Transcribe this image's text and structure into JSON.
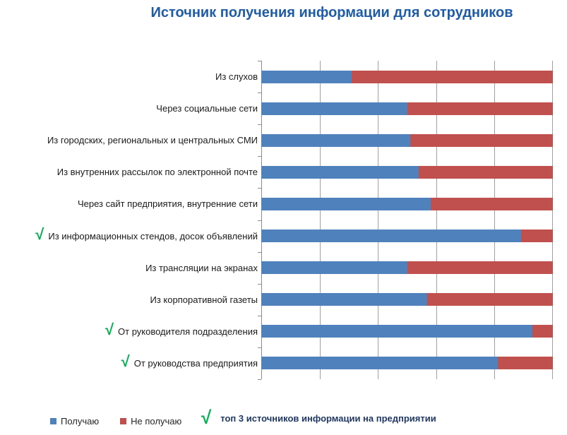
{
  "title": "Источник получения информации для сотрудников",
  "colors": {
    "received": "#4F81BD",
    "not_received": "#C0504D",
    "checkmark": "#00B050",
    "title": "#1F5CA8",
    "note_text": "#1F3864",
    "gridline": "#A0A0A0"
  },
  "chart_data": {
    "type": "bar",
    "orientation": "horizontal",
    "stacked": true,
    "unit": "percent",
    "title": "Источник получения информации для сотрудников",
    "xlabel": "",
    "ylabel": "",
    "xlim": [
      0,
      100
    ],
    "gridlines": [
      0,
      20,
      40,
      60,
      80,
      100
    ],
    "grid": "vertical-only",
    "legend_position": "bottom",
    "categories": [
      "Из слухов",
      "Через социальные сети",
      "Из городских, региональных и центральных СМИ",
      "Из внутренних рассылок по электронной почте",
      "Через сайт предприятия, внутренние сети",
      "Из информационных стендов, досок объявлений",
      "Из трансляции на экранах",
      "Из корпоративной газеты",
      "От руководителя подразделения",
      "От руководства предприятия"
    ],
    "top3_flags": [
      false,
      false,
      false,
      false,
      false,
      true,
      false,
      false,
      true,
      true
    ],
    "series": [
      {
        "name": "Получаю",
        "color": "#4F81BD",
        "values": [
          31,
          50,
          51,
          54,
          58,
          89,
          50,
          57,
          93,
          81
        ]
      },
      {
        "name": "Не получаю",
        "color": "#C0504D",
        "values": [
          69,
          50,
          49,
          46,
          42,
          11,
          50,
          43,
          7,
          19
        ]
      }
    ]
  },
  "legend": {
    "items": [
      {
        "label": "Получаю",
        "color": "#4F81BD"
      },
      {
        "label": "Не получаю",
        "color": "#C0504D"
      }
    ],
    "note_symbol": "√",
    "note_label": "топ 3 источников информации на предприятии"
  }
}
